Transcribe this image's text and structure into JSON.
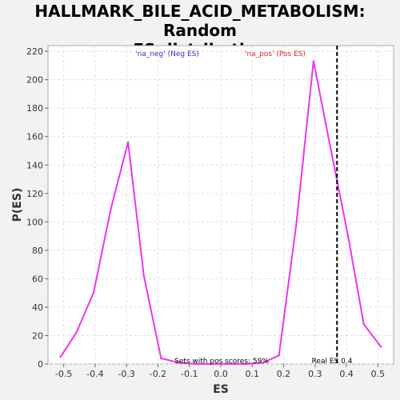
{
  "chart_data": {
    "type": "line",
    "title_line1": "HALLMARK_BILE_ACID_METABOLISM: Random",
    "title_line2": "ES distribution",
    "xlabel": "ES",
    "ylabel": "P(ES)",
    "xlim": [
      -0.55,
      0.55
    ],
    "ylim": [
      0,
      224
    ],
    "xticks": [
      "-0.5",
      "-0.4",
      "-0.3",
      "-0.2",
      "-0.1",
      "0.0",
      "0.1",
      "0.2",
      "0.3",
      "0.4",
      "0.5"
    ],
    "yticks": [
      "0",
      "20",
      "40",
      "60",
      "80",
      "100",
      "120",
      "140",
      "160",
      "180",
      "200",
      "220"
    ],
    "grid": true,
    "series": [
      {
        "color": "#ee33ee",
        "x": [
          -0.51,
          -0.46,
          -0.405,
          -0.35,
          -0.295,
          -0.245,
          -0.19,
          -0.135,
          -0.08,
          -0.025,
          0.025,
          0.08,
          0.135,
          0.185,
          0.24,
          0.295,
          0.35,
          0.405,
          0.455,
          0.51
        ],
        "y": [
          5,
          22,
          50,
          109,
          156,
          62,
          4,
          1,
          0,
          0,
          0,
          0,
          1,
          6,
          98,
          213,
          151,
          90,
          28,
          12
        ]
      }
    ],
    "real_es": 0.37,
    "real_es_color": "#000000",
    "annotations": {
      "neg_label": "'na_neg' (Neg ES)",
      "neg_color": "#3333cc",
      "pos_label": "'na_pos' (Pos ES)",
      "pos_color": "#dd2222",
      "pos_scores": "Sets with pos scores: 59%",
      "real_es_label": "Real ES 0.4"
    }
  }
}
